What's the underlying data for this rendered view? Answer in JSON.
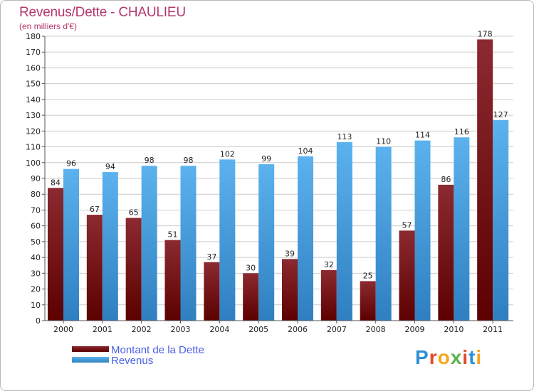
{
  "title": "Revenus/Dette - CHAULIEU",
  "subtitle": "(en milliers d'€)",
  "logo": {
    "text": "Proxiti",
    "colors": [
      "#2e8fd6",
      "#e8472c",
      "#f6a51c",
      "#5ab54a",
      "#e8472c",
      "#2e8fd6",
      "#f6a51c"
    ]
  },
  "colors": {
    "dette_top": "#8b2a30",
    "dette_bottom": "#5c0000",
    "revenus_top": "#5bb2ee",
    "revenus_bottom": "#2f7fc0",
    "grid": "#cccccc",
    "axis": "#555555"
  },
  "chart_data": {
    "type": "bar",
    "title": "Revenus/Dette - CHAULIEU",
    "subtitle": "(en milliers d'€)",
    "categories": [
      "2000",
      "2001",
      "2002",
      "2003",
      "2004",
      "2005",
      "2006",
      "2007",
      "2008",
      "2009",
      "2010",
      "2011"
    ],
    "series": [
      {
        "name": "Montant de la Dette",
        "values": [
          84,
          67,
          65,
          51,
          37,
          30,
          39,
          32,
          25,
          57,
          86,
          178
        ]
      },
      {
        "name": "Revenus",
        "values": [
          96,
          94,
          98,
          98,
          102,
          99,
          104,
          113,
          110,
          114,
          116,
          127
        ]
      }
    ],
    "ylim": [
      0,
      180
    ],
    "yticks": [
      0,
      10,
      20,
      30,
      40,
      50,
      60,
      70,
      80,
      90,
      100,
      110,
      120,
      130,
      140,
      150,
      160,
      170,
      180
    ],
    "grid": true,
    "legend_position": "bottom-left"
  }
}
